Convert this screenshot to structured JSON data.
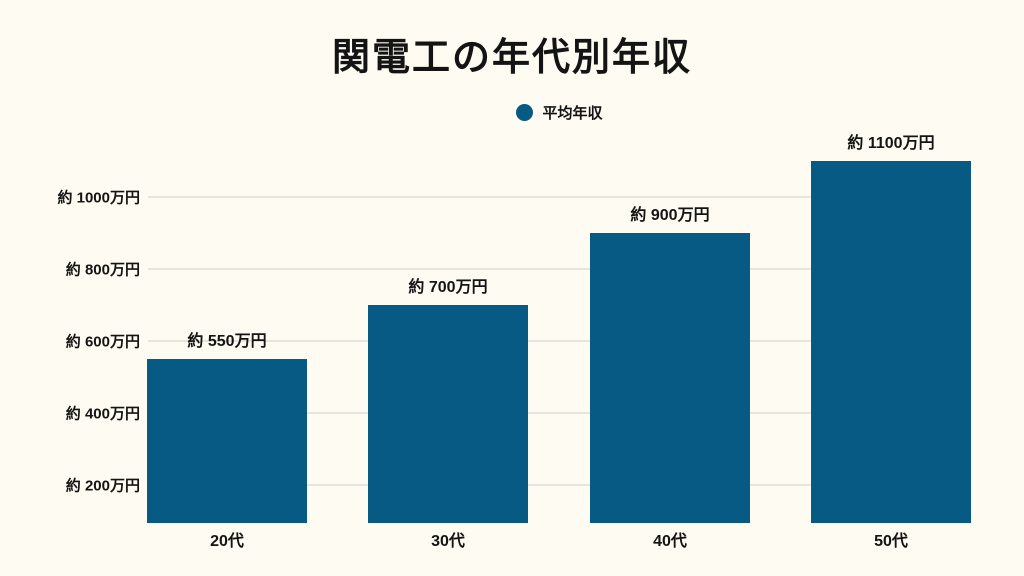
{
  "title": "関電工の年代別年収",
  "legend": {
    "label": "平均年収",
    "marker_color": "#065a84"
  },
  "colors": {
    "background": "#fdfbf2",
    "bar": "#065a84",
    "gridline": "#e8e5dd",
    "text": "#141414"
  },
  "chart_data": {
    "type": "bar",
    "title": "関電工の年代別年収",
    "categories": [
      "20代",
      "30代",
      "40代",
      "50代"
    ],
    "series": [
      {
        "name": "平均年収",
        "values": [
          550,
          700,
          900,
          1100
        ]
      }
    ],
    "bar_labels": [
      "約 550万円",
      "約 700万円",
      "約 900万円",
      "約 1100万円"
    ],
    "ytick_values": [
      200,
      400,
      600,
      800,
      1000
    ],
    "ytick_labels": [
      "約 200万円",
      "約 400万円",
      "約 600万円",
      "約 800万円",
      "約 1000万円"
    ],
    "unit": "万円",
    "ylim": [
      94,
      1130
    ],
    "grid": true,
    "legend_position": "top-center",
    "xlabel": "",
    "ylabel": ""
  }
}
